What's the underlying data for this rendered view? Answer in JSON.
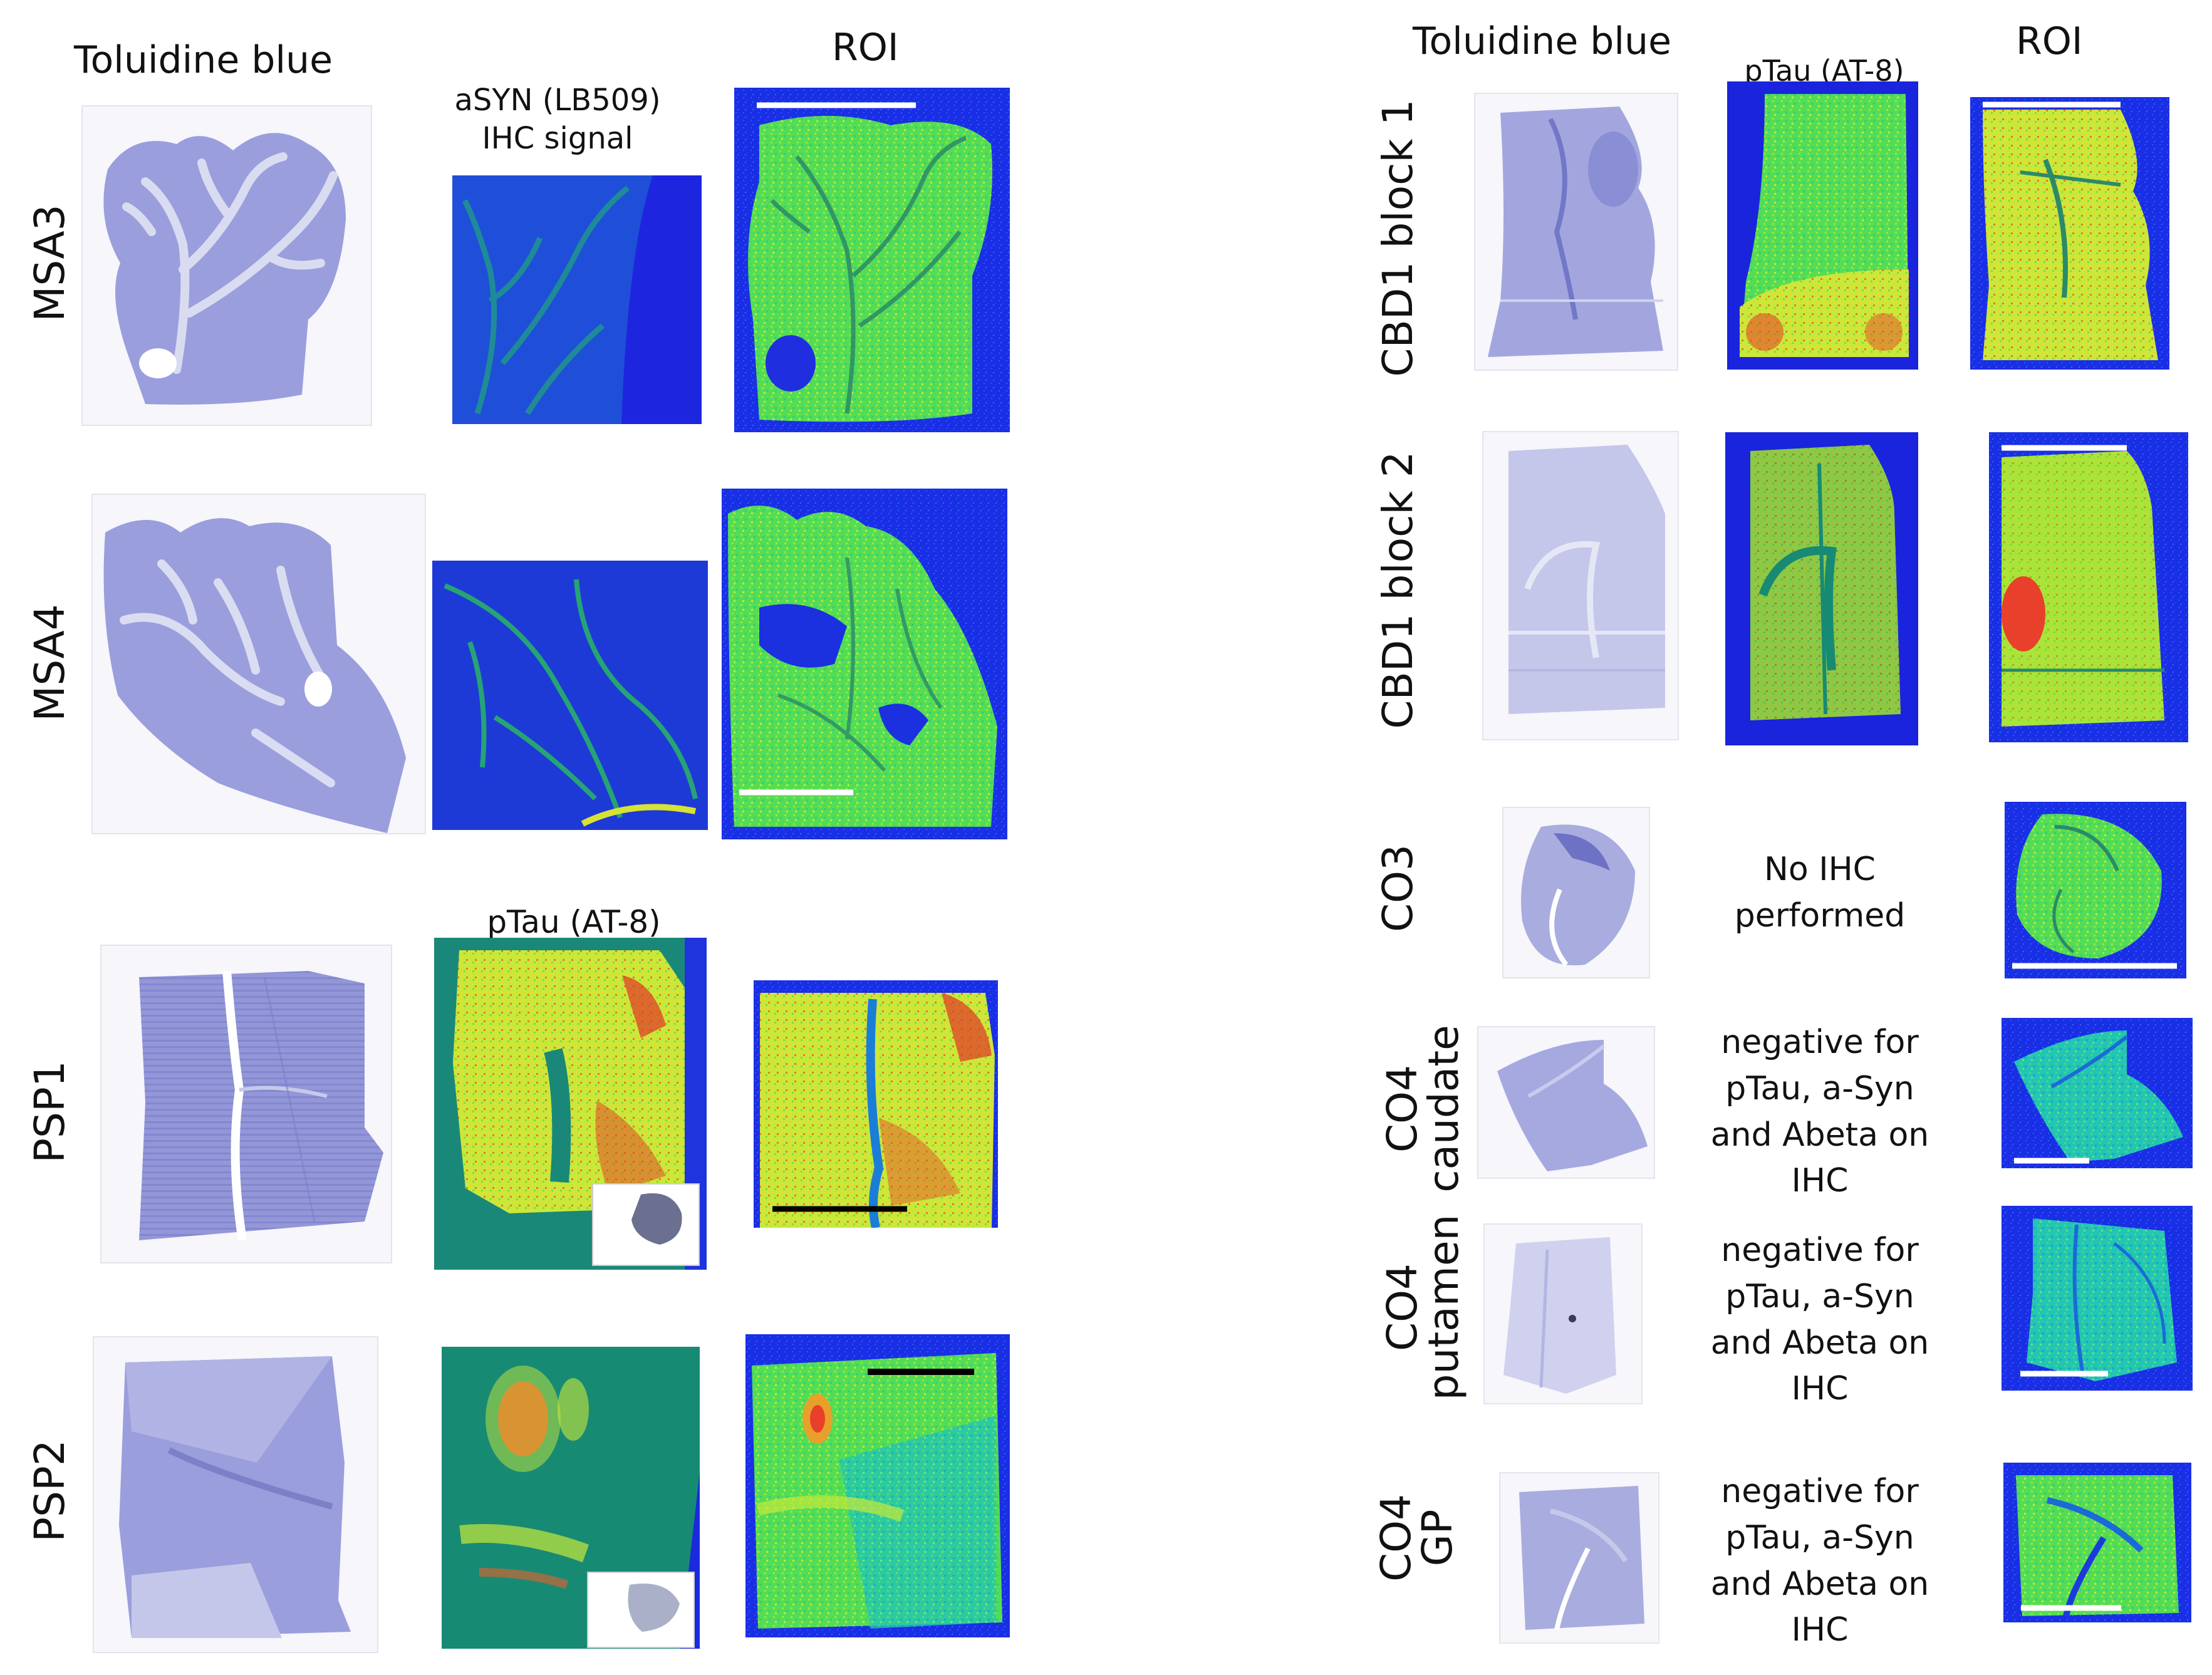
{
  "left": {
    "headers": {
      "stain": "Toluidine blue",
      "ihc_asyn": "aSYN (LB509)\nIHC signal",
      "ihc_ptau": "pTau (AT-8)",
      "roi": "ROI"
    },
    "rows": [
      {
        "label": "MSA3"
      },
      {
        "label": "MSA4"
      },
      {
        "label": "PSP1"
      },
      {
        "label": "PSP2"
      }
    ]
  },
  "right": {
    "headers": {
      "stain": "Toluidine blue",
      "ihc": "pTau (AT-8)",
      "roi": "ROI"
    },
    "rows": [
      {
        "label": "CBD1 block 1"
      },
      {
        "label": "CBD1 block 2"
      },
      {
        "label": "CO3",
        "note": "No IHC\nperformed"
      },
      {
        "label": "CO4\ncaudate",
        "note": "negative for\npTau, a-Syn\nand Abeta on\nIHC"
      },
      {
        "label": "CO4\nputamen",
        "note": "negative for\npTau, a-Syn\nand Abeta on\nIHC"
      },
      {
        "label": "CO4\nGP",
        "note": "negative for\npTau, a-Syn\nand Abeta on\nIHC"
      }
    ]
  },
  "colors": {
    "toluidine_tissue": "#8f93d6",
    "toluidine_light": "#c9cbe8",
    "heat_background": "#1424e0",
    "heat_low": "#19c6b4",
    "heat_mid": "#5be04a",
    "heat_high": "#e9e52a",
    "heat_max": "#e02a16",
    "scale_white": "#ffffff",
    "scale_black": "#000000"
  }
}
